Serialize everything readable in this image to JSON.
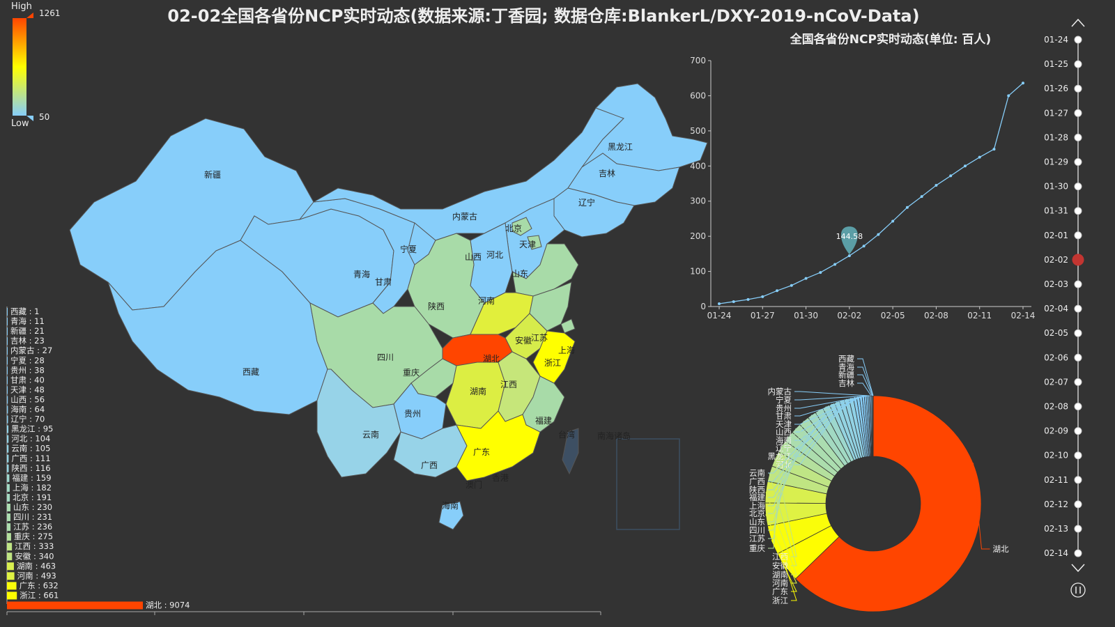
{
  "title": "02-02全国各省份NCP实时动态(数据来源:丁香园; 数据仓库:BlankerL/DXY-2019-nCoV-Data)",
  "visual_map": {
    "high_label": "High",
    "low_label": "Low",
    "max": "1261",
    "min": "50",
    "colors": [
      "#87cefa",
      "#ffff00",
      "#ff4500"
    ]
  },
  "map": {
    "region_labels": [
      "新疆",
      "西藏",
      "内蒙古",
      "黑龙江",
      "吉林",
      "辽宁",
      "北京",
      "天津",
      "河北",
      "山西",
      "宁夏",
      "甘肃",
      "青海",
      "陕西",
      "山东",
      "河南",
      "四川",
      "湖北",
      "安徽",
      "江苏",
      "上海",
      "浙江",
      "重庆",
      "湖南",
      "江西",
      "贵州",
      "云南",
      "福建",
      "广西",
      "广东",
      "香港",
      "澳门",
      "海南",
      "台湾",
      "南海诸岛"
    ]
  },
  "chart_data": [
    {
      "type": "line",
      "title": "全国各省份NCP实时动态(单位: 百人)",
      "x": [
        "01-24",
        "01-25",
        "01-26",
        "01-27",
        "01-28",
        "01-29",
        "01-30",
        "01-31",
        "02-01",
        "02-02",
        "02-03",
        "02-04",
        "02-05",
        "02-06",
        "02-07",
        "02-08",
        "02-09",
        "02-10",
        "02-11",
        "02-12",
        "02-13",
        "02-14"
      ],
      "x_tick_labels": [
        "01-24",
        "01-27",
        "01-30",
        "02-02",
        "02-05",
        "02-08",
        "02-11",
        "02-14"
      ],
      "values": [
        8,
        14,
        20,
        28,
        45,
        60,
        80,
        97,
        120,
        144.58,
        172,
        205,
        243,
        282,
        313,
        345,
        372,
        400,
        425,
        448,
        600,
        636
      ],
      "ylim": [
        0,
        700
      ],
      "y_ticks": [
        0,
        100,
        200,
        300,
        400,
        500,
        600,
        700
      ],
      "marker": {
        "x": "02-02",
        "label": "144.58"
      },
      "color": "#87cefa"
    },
    {
      "type": "bar",
      "orientation": "horizontal",
      "categories": [
        "西藏",
        "青海",
        "新疆",
        "吉林",
        "内蒙古",
        "宁夏",
        "贵州",
        "甘肃",
        "天津",
        "山西",
        "海南",
        "辽宁",
        "黑龙江",
        "河北",
        "云南",
        "广西",
        "陕西",
        "福建",
        "上海",
        "北京",
        "山东",
        "四川",
        "江苏",
        "重庆",
        "江西",
        "安徽",
        "湖南",
        "河南",
        "广东",
        "浙江",
        "湖北"
      ],
      "values": [
        1,
        11,
        21,
        23,
        27,
        28,
        38,
        40,
        48,
        56,
        64,
        70,
        95,
        104,
        105,
        111,
        116,
        159,
        182,
        191,
        230,
        231,
        236,
        275,
        333,
        340,
        463,
        493,
        632,
        661,
        9074
      ]
    },
    {
      "type": "pie",
      "subtype": "donut",
      "categories": [
        "西藏",
        "青海",
        "新疆",
        "吉林",
        "内蒙古",
        "宁夏",
        "贵州",
        "甘肃",
        "天津",
        "山西",
        "海南",
        "辽宁",
        "黑龙江",
        "河北",
        "云南",
        "广西",
        "陕西",
        "福建",
        "上海",
        "北京",
        "山东",
        "四川",
        "江苏",
        "重庆",
        "江西",
        "安徽",
        "湖南",
        "河南",
        "广东",
        "浙江",
        "湖北"
      ],
      "values": [
        1,
        11,
        21,
        23,
        27,
        28,
        38,
        40,
        48,
        56,
        64,
        70,
        95,
        104,
        105,
        111,
        116,
        159,
        182,
        191,
        230,
        231,
        236,
        275,
        333,
        340,
        463,
        493,
        632,
        661,
        9074
      ]
    }
  ],
  "timeline": {
    "dates": [
      "01-24",
      "01-25",
      "01-26",
      "01-27",
      "01-28",
      "01-29",
      "01-30",
      "01-31",
      "02-01",
      "02-02",
      "02-03",
      "02-04",
      "02-05",
      "02-06",
      "02-07",
      "02-08",
      "02-09",
      "02-10",
      "02-11",
      "02-12",
      "02-13",
      "02-14"
    ],
    "current": "02-02"
  }
}
